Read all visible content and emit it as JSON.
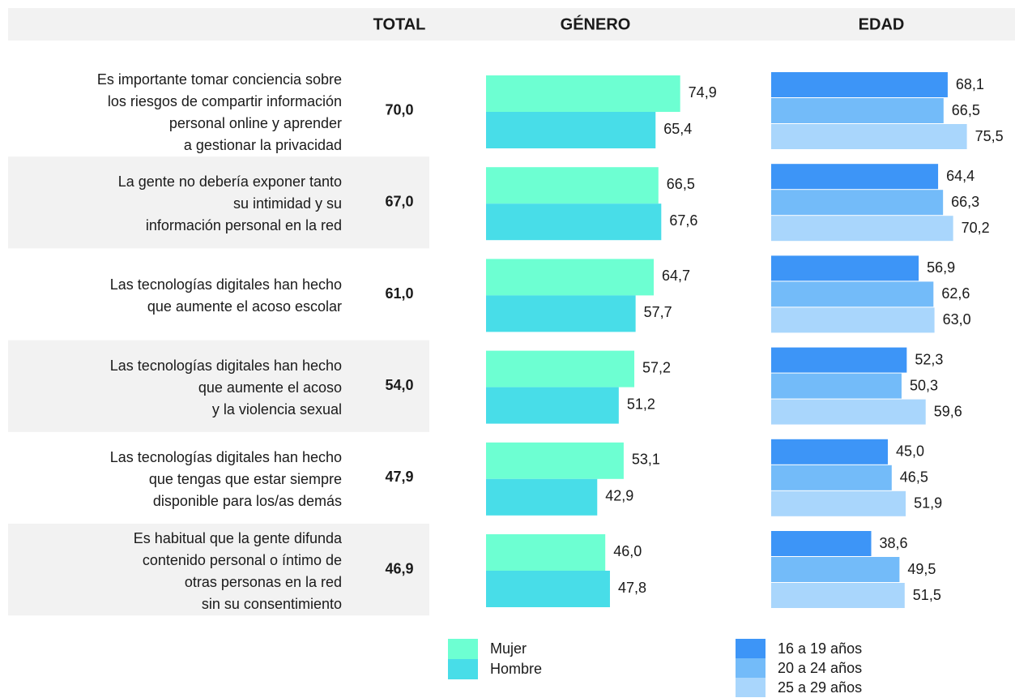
{
  "chart_data": {
    "type": "bar",
    "categories": [
      "Es importante tomar conciencia sobre\nlos riesgos de compartir información\npersonal online y aprender\na gestionar la privacidad",
      "La gente no debería exponer tanto\nsu intimidad y su\ninformación personal en la red",
      "Las tecnologías digitales han hecho\nque aumente el acoso escolar",
      "Las tecnologías digitales han hecho\nque aumente el acoso\ny la violencia sexual",
      "Las tecnologías digitales han hecho\nque tengas que estar siempre\ndisponible para los/as demás",
      "Es habitual que la gente difunda\ncontenido personal o íntimo de\notras personas en la red\nsin su consentimiento"
    ],
    "totals": {
      "name": "TOTAL",
      "values": [
        70.0,
        67.0,
        61.0,
        54.0,
        47.9,
        46.9
      ],
      "value_labels": [
        "70,0",
        "67,0",
        "61,0",
        "54,0",
        "47,9",
        "46,9"
      ]
    },
    "gender": {
      "name": "GÉNERO",
      "series": [
        {
          "name": "Mujer",
          "color": "#6dffd2",
          "values": [
            74.9,
            66.5,
            64.7,
            57.2,
            53.1,
            46.0
          ],
          "value_labels": [
            "74,9",
            "66,5",
            "64,7",
            "57,2",
            "53,1",
            "46,0"
          ]
        },
        {
          "name": "Hombre",
          "color": "#48dde8",
          "values": [
            65.4,
            67.6,
            57.7,
            51.2,
            42.9,
            47.8
          ],
          "value_labels": [
            "65,4",
            "67,6",
            "57,7",
            "51,2",
            "42,9",
            "47,8"
          ]
        }
      ]
    },
    "age": {
      "name": "EDAD",
      "series": [
        {
          "name": "16 a 19 años",
          "color": "#3d95f7",
          "values": [
            68.1,
            64.4,
            56.9,
            52.3,
            45.0,
            38.6
          ],
          "value_labels": [
            "68,1",
            "64,4",
            "56,9",
            "52,3",
            "45,0",
            "38,6"
          ]
        },
        {
          "name": "20 a 24 años",
          "color": "#73bbf9",
          "values": [
            66.5,
            66.3,
            62.6,
            50.3,
            46.5,
            49.5
          ],
          "value_labels": [
            "66,5",
            "66,3",
            "62,6",
            "50,3",
            "46,5",
            "49,5"
          ]
        },
        {
          "name": "25 a 29 años",
          "color": "#a9d6fc",
          "values": [
            75.5,
            70.2,
            63.0,
            59.6,
            51.9,
            51.5
          ],
          "value_labels": [
            "75,5",
            "70,2",
            "63,0",
            "59,6",
            "51,9",
            "51,5"
          ]
        }
      ]
    }
  }
}
